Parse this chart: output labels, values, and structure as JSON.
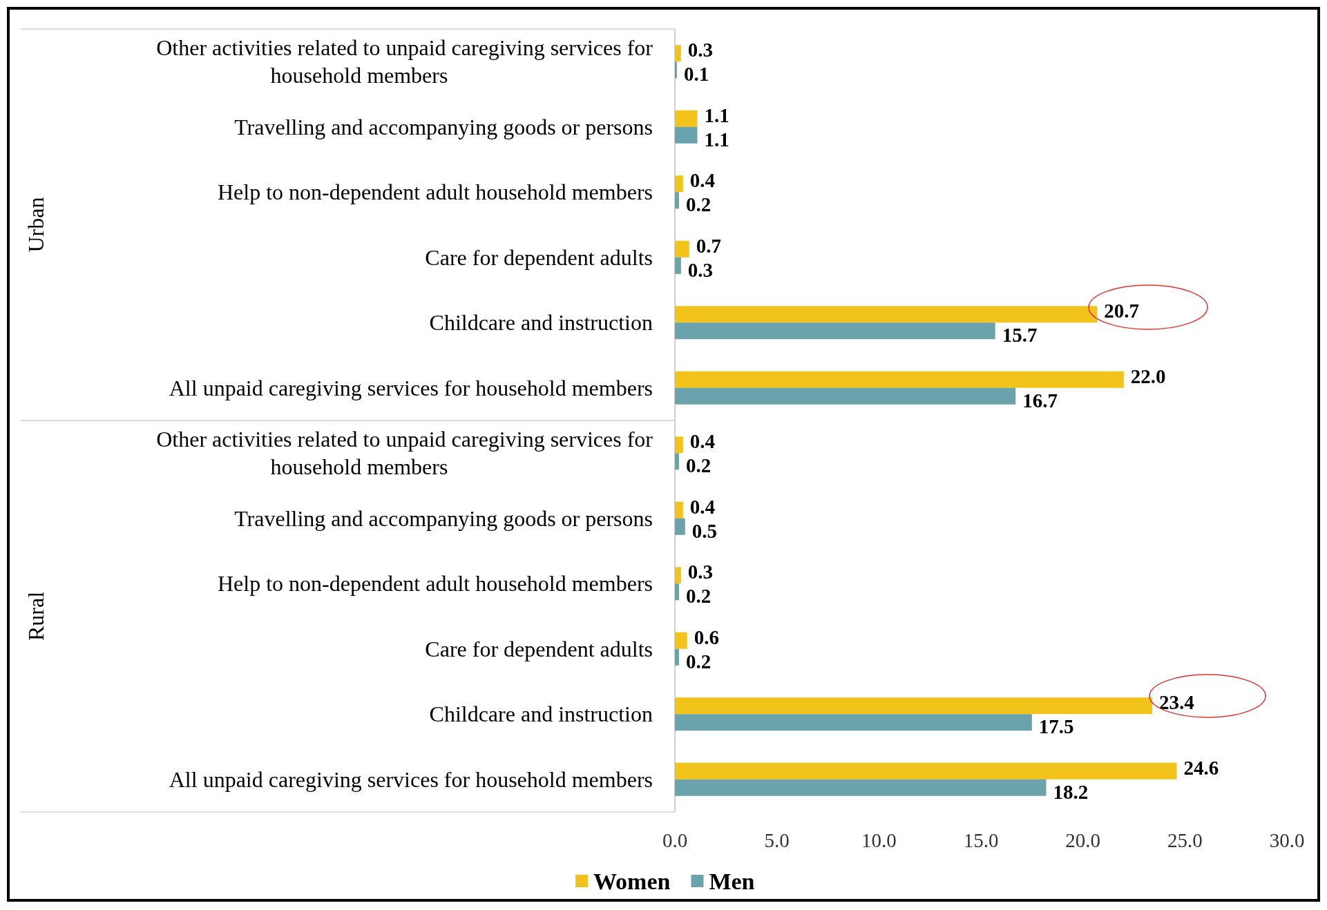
{
  "chart_data": {
    "type": "bar",
    "orientation": "horizontal",
    "categories": [
      "Other activities related to unpaid caregiving services for household members",
      "Travelling and accompanying goods or persons",
      "Help to non-dependent adult household members",
      "Care for dependent adults",
      "Childcare and instruction",
      "All unpaid caregiving services for household members",
      "Other activities related to unpaid caregiving services for household members",
      "Travelling and accompanying goods or persons",
      "Help to non-dependent adult household members",
      "Care for dependent adults",
      "Childcare and instruction",
      "All unpaid caregiving services for household members"
    ],
    "series": [
      {
        "name": "Women",
        "color": "#f2c31a",
        "values": [
          0.3,
          1.1,
          0.4,
          0.7,
          20.7,
          22.0,
          0.4,
          0.4,
          0.3,
          0.6,
          23.4,
          24.6
        ],
        "value_labels": [
          "0.3",
          "1.1",
          "0.4",
          "0.7",
          "20.7",
          "22.0",
          "0.4",
          "0.4",
          "0.3",
          "0.6",
          "23.4",
          "24.6"
        ]
      },
      {
        "name": "Men",
        "color": "#6aa3ab",
        "values": [
          0.1,
          1.1,
          0.2,
          0.3,
          15.7,
          16.7,
          0.2,
          0.5,
          0.2,
          0.2,
          17.5,
          18.2
        ],
        "value_labels": [
          "0.1",
          "1.1",
          "0.2",
          "0.3",
          "15.7",
          "16.7",
          "0.2",
          "0.5",
          "0.2",
          "0.2",
          "17.5",
          "18.2"
        ]
      }
    ],
    "annotations": [
      "Urban",
      "Rural"
    ],
    "xlim": [
      0,
      30
    ],
    "xticks": [
      {
        "value": 0,
        "label": "0.0"
      },
      {
        "value": 5,
        "label": "5.0"
      },
      {
        "value": 10,
        "label": "10.0"
      },
      {
        "value": 15,
        "label": "15.0"
      },
      {
        "value": 20,
        "label": "20.0"
      },
      {
        "value": 25,
        "label": "25.0"
      },
      {
        "value": 30,
        "label": "30.0"
      }
    ],
    "legend": "bottom"
  }
}
